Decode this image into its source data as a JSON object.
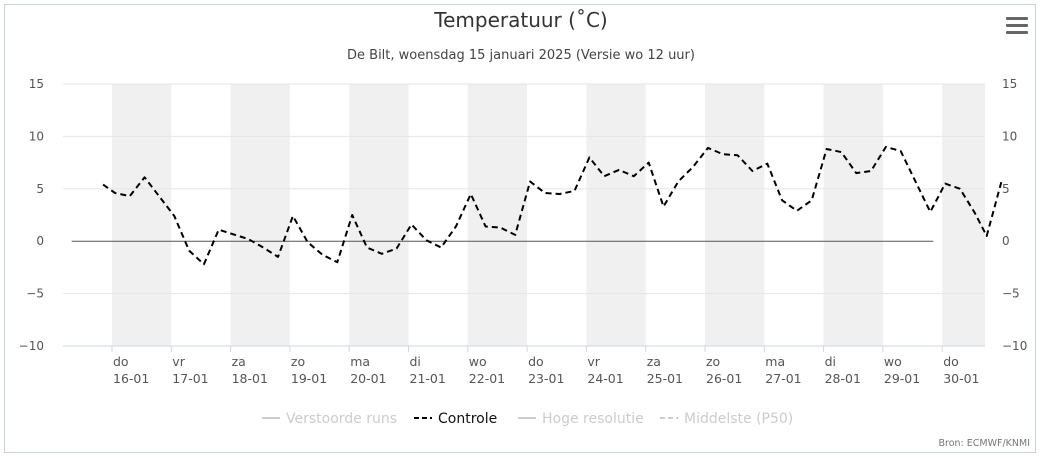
{
  "chart_data": {
    "type": "line",
    "title": "Temperatuur (˚C)",
    "subtitle": "De Bilt, woensdag 15 januari 2025 (Versie wo 12 uur)",
    "ylim": [
      -10,
      15
    ],
    "yticks": [
      15,
      10,
      5,
      0,
      -5,
      -10
    ],
    "ytick_labels": [
      "15",
      "10",
      "5",
      "0",
      "−5",
      "−10"
    ],
    "x_days": [
      {
        "day": "do",
        "date": "16-01"
      },
      {
        "day": "vr",
        "date": "17-01"
      },
      {
        "day": "za",
        "date": "18-01"
      },
      {
        "day": "zo",
        "date": "19-01"
      },
      {
        "day": "ma",
        "date": "20-01"
      },
      {
        "day": "di",
        "date": "21-01"
      },
      {
        "day": "wo",
        "date": "22-01"
      },
      {
        "day": "do",
        "date": "23-01"
      },
      {
        "day": "vr",
        "date": "24-01"
      },
      {
        "day": "za",
        "date": "25-01"
      },
      {
        "day": "zo",
        "date": "26-01"
      },
      {
        "day": "ma",
        "date": "27-01"
      },
      {
        "day": "di",
        "date": "28-01"
      },
      {
        "day": "wo",
        "date": "29-01"
      },
      {
        "day": "do",
        "date": "30-01"
      }
    ],
    "xlim_days": [
      -0.8,
      14.55
    ],
    "zero_line_days": [
      -0.68,
      13.85
    ],
    "series": [
      {
        "name": "Controle",
        "style": "dashed",
        "color": "#000000",
        "x": [
          -0.15,
          0.05,
          0.3,
          0.55,
          1.05,
          1.3,
          1.55,
          1.8,
          2.3,
          2.55,
          2.8,
          3.05,
          3.3,
          3.55,
          3.8,
          4.05,
          4.3,
          4.55,
          4.8,
          5.05,
          5.3,
          5.55,
          5.8,
          6.05,
          6.3,
          6.55,
          6.8,
          7.05,
          7.3,
          7.55,
          7.8,
          8.05,
          8.3,
          8.55,
          8.8,
          9.05,
          9.3,
          9.55,
          9.8,
          10.05,
          10.3,
          10.55,
          10.8,
          11.05,
          11.3,
          11.55,
          11.8,
          12.05,
          12.3,
          12.55,
          12.8,
          13.05,
          13.3,
          13.55,
          13.8,
          14.05,
          14.3
        ],
        "y": [
          5.4,
          4.6,
          4.3,
          6.1,
          2.4,
          -0.9,
          -2.2,
          1.1,
          0.2,
          -0.6,
          -1.5,
          2.4,
          -0.1,
          -1.3,
          -2.0,
          2.5,
          -0.6,
          -1.2,
          -0.7,
          1.6,
          0.1,
          -0.6,
          1.4,
          4.5,
          1.4,
          1.3,
          0.6,
          5.7,
          4.6,
          4.5,
          4.8,
          8.0,
          6.2,
          6.8,
          6.2,
          7.5,
          3.3,
          5.7,
          7.1,
          8.9,
          8.3,
          8.2,
          6.7,
          7.4,
          3.9,
          2.9,
          3.9,
          8.8,
          8.5,
          6.5,
          6.7,
          9.0,
          8.6,
          5.7,
          2.8,
          5.5,
          5.0
        ]
      }
    ],
    "series_tail": {
      "x": [
        14.55,
        14.75
      ],
      "y": [
        2.7,
        0.5
      ]
    },
    "series_tail_end": {
      "x": 15.0,
      "y": 5.7
    },
    "legend": [
      {
        "label": "Verstoorde runs",
        "active": false,
        "style": "solid"
      },
      {
        "label": "Controle",
        "active": true,
        "style": "dashed"
      },
      {
        "label": "Hoge resolutie",
        "active": false,
        "style": "solid"
      },
      {
        "label": "Middelste (P50)",
        "active": false,
        "style": "dashed"
      }
    ],
    "credit": "Bron: ECMWF/KNMI",
    "colors": {
      "band": "#f0f0f0",
      "grid": "#e6e6e6",
      "zero": "#555555",
      "inactive": "#cccccc",
      "active": "#000000"
    }
  }
}
